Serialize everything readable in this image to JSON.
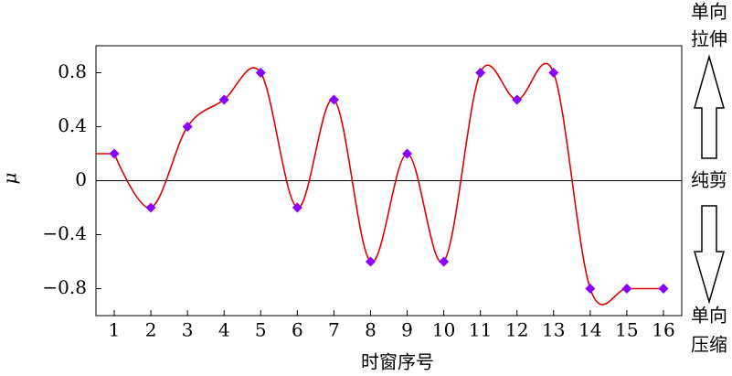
{
  "chart_data": {
    "type": "line",
    "x_label": "时窗序号",
    "y_label": "μ",
    "x": [
      1,
      2,
      3,
      4,
      5,
      6,
      7,
      8,
      9,
      10,
      11,
      12,
      13,
      14,
      15,
      16
    ],
    "series": [
      {
        "color": "#e00000",
        "marker_color": "#8a00ff",
        "values": [
          0.2,
          -0.2,
          0.4,
          0.6,
          0.8,
          -0.2,
          0.6,
          -0.6,
          0.2,
          -0.6,
          0.8,
          0.6,
          0.8,
          -0.8,
          -0.8,
          -0.8
        ]
      }
    ],
    "xlim": [
      0.5,
      16.5
    ],
    "xticks": [
      1,
      2,
      3,
      4,
      5,
      6,
      7,
      8,
      9,
      10,
      11,
      12,
      13,
      14,
      15,
      16
    ],
    "ylim": [
      -1,
      1
    ],
    "yticks": [
      {
        "value": -0.8,
        "label": "−0.8"
      },
      {
        "value": -0.4,
        "label": "−0.4"
      },
      0,
      0.4,
      0.8
    ],
    "annotations": {
      "tension": [
        "单向",
        "拉伸"
      ],
      "shear": "纯剪",
      "compression": [
        "单向",
        "压缩"
      ]
    }
  }
}
